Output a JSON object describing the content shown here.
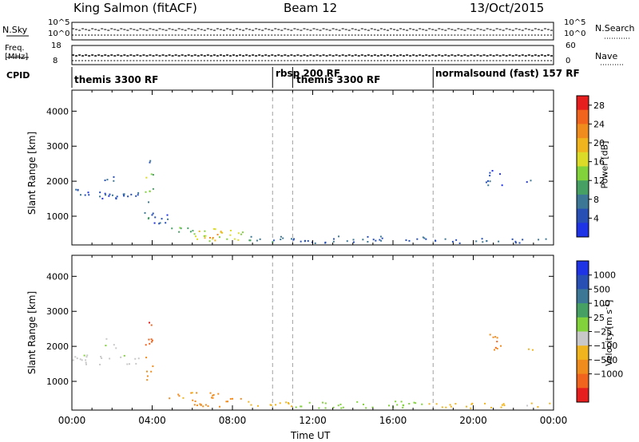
{
  "header": {
    "station_title": "King Salmon (fitACF)",
    "beam_title": "Beam 12",
    "date_title": "13/Oct/2015"
  },
  "summary_panels": {
    "nsky_label": "N.Sky",
    "nsky_ticks": [
      "10^5",
      "10^0"
    ],
    "nsearch_label": "N.Search",
    "nsearch_ticks": [
      "10^5",
      "10^0"
    ],
    "freq_label_line1": "Freq.",
    "freq_label_line2": "[MHz]",
    "freq_ticks": [
      "18",
      "8"
    ],
    "nave_label": "Nave",
    "nave_ticks": [
      "60",
      "0"
    ],
    "cpid_label": "CPID",
    "modes": [
      {
        "label": "themis 3300 RF",
        "start_hour": 0.0
      },
      {
        "label": "rbsp 200 RF",
        "start_hour": 10.0
      },
      {
        "label": "themis 3300 RF",
        "start_hour": 11.0
      },
      {
        "label": "normalsound (fast) 157 RF",
        "start_hour": 18.0
      }
    ]
  },
  "colors": {
    "power_scale": [
      "#1e32e6",
      "#2850b4",
      "#3c7896",
      "#46a064",
      "#82d23c",
      "#dcdc28",
      "#f0b41e",
      "#f08c1e",
      "#f0641e",
      "#e61e1e"
    ],
    "velocity_scale": [
      "#1e32e6",
      "#2850b4",
      "#3c7896",
      "#46a064",
      "#82d23c",
      "#c8c8c8",
      "#f0b41e",
      "#f08c1e",
      "#f0641e",
      "#e61e1e"
    ],
    "dashed_line": "#a0a0a0"
  },
  "chart_data": [
    {
      "type": "heatmap",
      "ylabel": "Slant Range [km]",
      "xlabel": "",
      "xlim": [
        0,
        24
      ],
      "ylim": [
        180,
        4600
      ],
      "y_ticks": [
        "1000",
        "2000",
        "3000",
        "4000"
      ],
      "y_tick_values": [
        1000,
        2000,
        3000,
        4000
      ],
      "colorbar_label": "Power [dB]",
      "colorbar_ticks": [
        "4",
        "8",
        "12",
        "16",
        "20",
        "24",
        "28"
      ],
      "colorbar_range": [
        0,
        30
      ],
      "regions": [
        {
          "x": [
            0.0,
            3.3
          ],
          "y": [
            1500,
            1800
          ],
          "value": 5
        },
        {
          "x": [
            2.3,
            3.3
          ],
          "y": [
            1500,
            1700
          ],
          "value": 6
        },
        {
          "x": [
            1.6,
            2.2
          ],
          "y": [
            1950,
            2250
          ],
          "value": 5
        },
        {
          "x": [
            3.6,
            4.0
          ],
          "y": [
            900,
            1500
          ],
          "value": 8
        },
        {
          "x": [
            3.6,
            4.1
          ],
          "y": [
            1700,
            2300
          ],
          "value": 14
        },
        {
          "x": [
            3.8,
            4.1
          ],
          "y": [
            2500,
            2850
          ],
          "value": 6
        },
        {
          "x": [
            4.0,
            5.0
          ],
          "y": [
            800,
            1200
          ],
          "value": 4
        },
        {
          "x": [
            4.8,
            6.0
          ],
          "y": [
            450,
            700
          ],
          "value": 10
        },
        {
          "x": [
            6.0,
            8.5
          ],
          "y": [
            300,
            700
          ],
          "value": 16
        },
        {
          "x": [
            6.5,
            7.5
          ],
          "y": [
            350,
            600
          ],
          "value": 21
        },
        {
          "x": [
            8.5,
            11.0
          ],
          "y": [
            260,
            450
          ],
          "value": 8
        },
        {
          "x": [
            11.0,
            17.5
          ],
          "y": [
            250,
            450
          ],
          "value": 6
        },
        {
          "x": [
            17.5,
            23.8
          ],
          "y": [
            250,
            400
          ],
          "value": 6
        },
        {
          "x": [
            20.6,
            21.4
          ],
          "y": [
            1900,
            2400
          ],
          "value": 5
        },
        {
          "x": [
            22.6,
            23.0
          ],
          "y": [
            1900,
            2100
          ],
          "value": 5
        }
      ]
    },
    {
      "type": "heatmap",
      "ylabel": "Slant Range [km]",
      "xlabel": "Time UT",
      "xlim": [
        0,
        24
      ],
      "ylim": [
        180,
        4600
      ],
      "x_ticks": [
        "00:00",
        "04:00",
        "08:00",
        "12:00",
        "16:00",
        "20:00",
        "00:00"
      ],
      "x_tick_values": [
        0,
        4,
        8,
        12,
        16,
        20,
        24
      ],
      "y_ticks": [
        "1000",
        "2000",
        "3000",
        "4000"
      ],
      "y_tick_values": [
        1000,
        2000,
        3000,
        4000
      ],
      "colorbar_label": "Velocity [m s",
      "colorbar_label_sup": "-1",
      "colorbar_ticks": [
        "1000",
        "500",
        "100",
        "25",
        "−25",
        "−100",
        "−500",
        "−1000"
      ],
      "colorbar_range": [
        -1200,
        1200
      ],
      "regions": [
        {
          "x": [
            0.0,
            3.3
          ],
          "y": [
            1500,
            1800
          ],
          "value": 10
        },
        {
          "x": [
            1.6,
            2.2
          ],
          "y": [
            1950,
            2250
          ],
          "value": 10
        },
        {
          "x": [
            3.6,
            4.0
          ],
          "y": [
            900,
            1500
          ],
          "value": -300
        },
        {
          "x": [
            3.6,
            4.1
          ],
          "y": [
            1700,
            2300
          ],
          "value": -600
        },
        {
          "x": [
            3.8,
            4.1
          ],
          "y": [
            2500,
            2850
          ],
          "value": -800
        },
        {
          "x": [
            4.8,
            6.0
          ],
          "y": [
            450,
            700
          ],
          "value": -150
        },
        {
          "x": [
            6.0,
            8.5
          ],
          "y": [
            300,
            700
          ],
          "value": -200
        },
        {
          "x": [
            8.5,
            11.0
          ],
          "y": [
            260,
            450
          ],
          "value": -60
        },
        {
          "x": [
            11.0,
            17.5
          ],
          "y": [
            250,
            450
          ],
          "value": 60
        },
        {
          "x": [
            17.5,
            23.8
          ],
          "y": [
            250,
            400
          ],
          "value": -40
        },
        {
          "x": [
            20.6,
            21.4
          ],
          "y": [
            1900,
            2400
          ],
          "value": -400
        },
        {
          "x": [
            22.6,
            23.0
          ],
          "y": [
            1900,
            2100
          ],
          "value": -60
        }
      ]
    }
  ]
}
